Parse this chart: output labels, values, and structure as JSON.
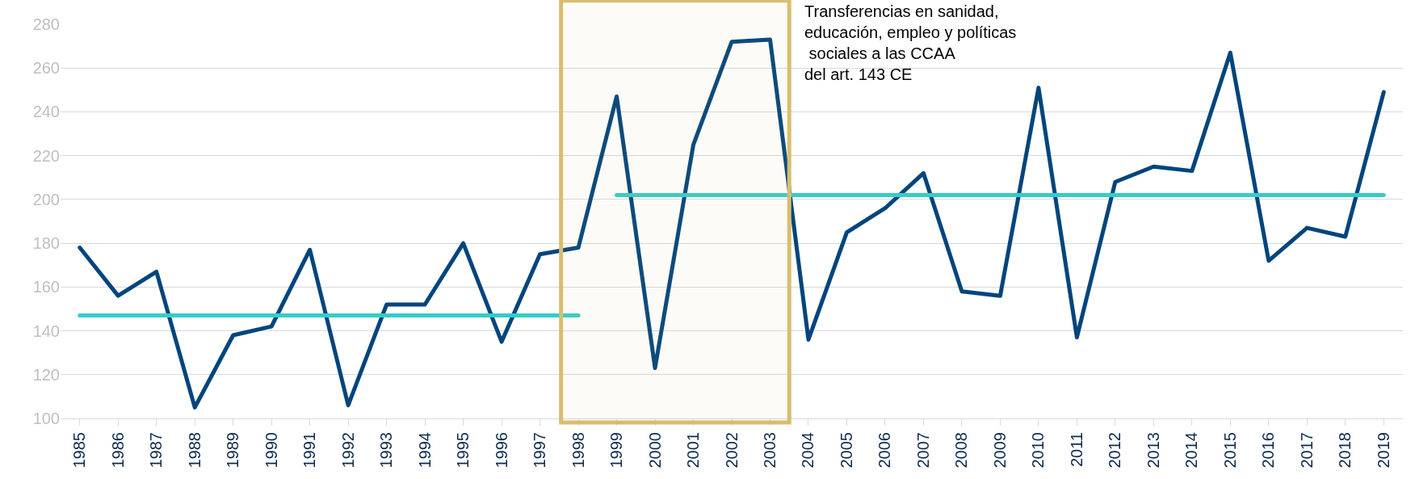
{
  "chart_data": {
    "type": "line",
    "categories": [
      "1985",
      "1986",
      "1987",
      "1988",
      "1989",
      "1990",
      "1991",
      "1992",
      "1993",
      "1994",
      "1995",
      "1996",
      "1997",
      "1998",
      "1999",
      "2000",
      "2001",
      "2002",
      "2003",
      "2004",
      "2005",
      "2006",
      "2007",
      "2008",
      "2009",
      "2010",
      "2011",
      "2012",
      "2013",
      "2014",
      "2015",
      "2016",
      "2017",
      "2018",
      "2019"
    ],
    "series": [
      {
        "color": "#00457c",
        "values": [
          178,
          156,
          167,
          105,
          138,
          142,
          177,
          106,
          152,
          152,
          180,
          135,
          175,
          178,
          247,
          123,
          225,
          272,
          273,
          136,
          185,
          196,
          212,
          158,
          156,
          251,
          137,
          208,
          215,
          213,
          267,
          172,
          187,
          183,
          249
        ]
      },
      {
        "color": "#33cccc",
        "values": [
          147,
          147,
          147,
          147,
          147,
          147,
          147,
          147,
          147,
          147,
          147,
          147,
          147,
          147,
          null,
          null,
          null,
          null,
          null,
          null,
          null,
          null,
          null,
          null,
          null,
          null,
          null,
          null,
          null,
          null,
          null,
          null,
          null,
          null,
          null
        ]
      },
      {
        "color": "#33cccc",
        "values": [
          null,
          null,
          null,
          null,
          null,
          null,
          null,
          null,
          null,
          null,
          null,
          null,
          null,
          null,
          202,
          202,
          202,
          202,
          202,
          202,
          202,
          202,
          202,
          202,
          202,
          202,
          202,
          202,
          202,
          202,
          202,
          202,
          202,
          202,
          202
        ]
      }
    ],
    "bands": [
      {
        "axis": "x",
        "from": "1998",
        "to": "2003",
        "color": "#d9bd6f",
        "label": "Transferencias en sanidad,\neducación, empleo y políticas\n sociales a las CCAA\ndel art. 143 CE"
      }
    ],
    "ylim": [
      100,
      280
    ],
    "yticks": [
      100,
      120,
      140,
      160,
      180,
      200,
      220,
      240,
      260,
      280
    ],
    "grid": "y",
    "marker": "none",
    "line_style": "solid"
  }
}
